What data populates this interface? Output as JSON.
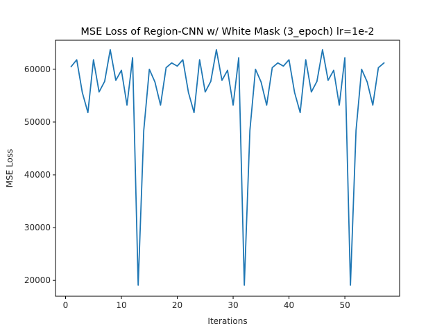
{
  "chart_data": {
    "type": "line",
    "title": "MSE Loss of Region-CNN w/ White Mask (3_epoch) lr=1e-2",
    "xlabel": "Iterations",
    "ylabel": "MSE Loss",
    "xlim": [
      -1.8,
      59.8
    ],
    "ylim": [
      17000,
      65500
    ],
    "xticks": [
      0,
      10,
      20,
      30,
      40,
      50
    ],
    "yticks": [
      20000,
      30000,
      40000,
      50000,
      60000
    ],
    "xtick_labels": [
      "0",
      "10",
      "20",
      "30",
      "40",
      "50"
    ],
    "ytick_labels": [
      "20000",
      "30000",
      "40000",
      "50000",
      "60000"
    ],
    "grid": false,
    "series": [
      {
        "color": "#1f77b4",
        "x": [
          1,
          2,
          3,
          4,
          5,
          6,
          7,
          8,
          9,
          10,
          11,
          12,
          13,
          14,
          15,
          16,
          17,
          18,
          19,
          20,
          21,
          22,
          23,
          24,
          25,
          26,
          27,
          28,
          29,
          30,
          31,
          32,
          33,
          34,
          35,
          36,
          37,
          38,
          39,
          40,
          41,
          42,
          43,
          44,
          45,
          46,
          47,
          48,
          49,
          50,
          51,
          52,
          53,
          54,
          55,
          56,
          57
        ],
        "y": [
          60500,
          61800,
          55600,
          51800,
          61800,
          55700,
          57700,
          63700,
          57900,
          59800,
          53200,
          62200,
          19100,
          48400,
          60000,
          57600,
          53200,
          60300,
          61200,
          60600,
          61800,
          55600,
          51800,
          61800,
          55700,
          57700,
          63700,
          57900,
          59800,
          53200,
          62200,
          19100,
          48400,
          60000,
          57600,
          53200,
          60300,
          61200,
          60600,
          61800,
          55600,
          51800,
          61800,
          55700,
          57700,
          63700,
          57900,
          59800,
          53200,
          62200,
          19100,
          48400,
          60000,
          57600,
          53200,
          60300,
          61200
        ]
      }
    ]
  }
}
